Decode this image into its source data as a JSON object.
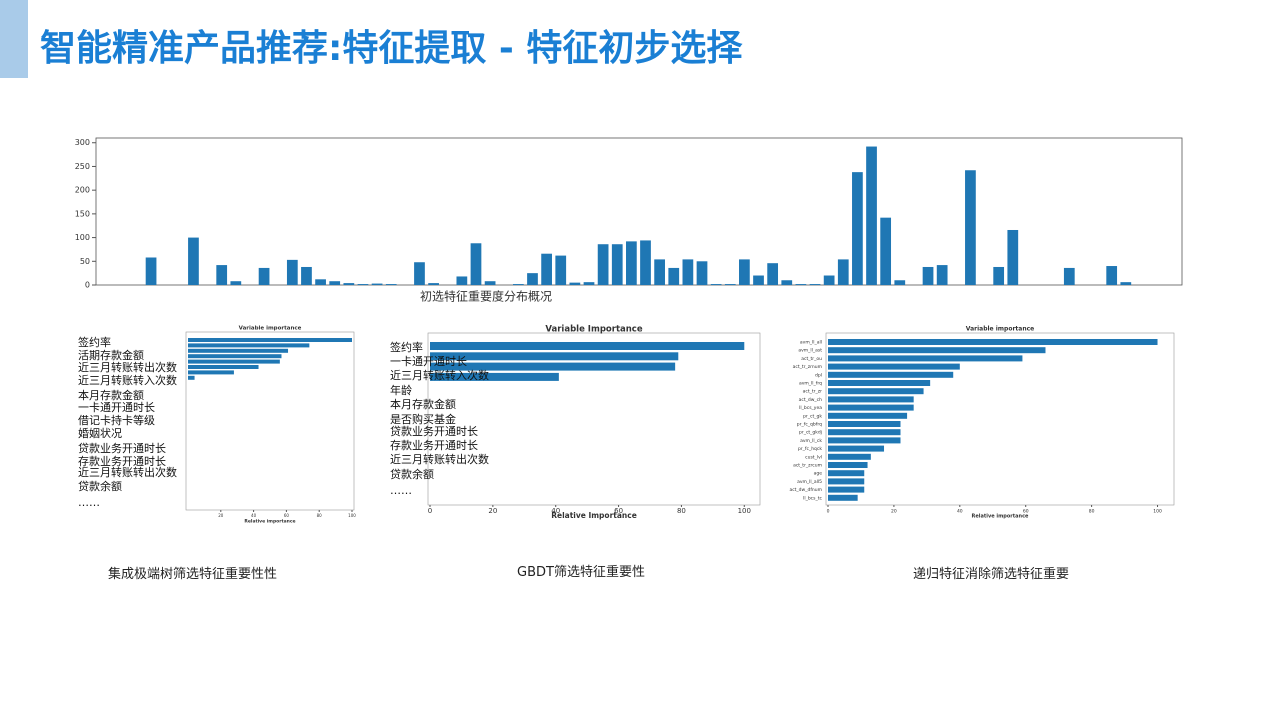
{
  "header": {
    "title": "智能精准产品推荐:特征提取 - 特征初步选择"
  },
  "chart_data": [
    {
      "type": "bar",
      "title": "初选特征重要度分布概况",
      "color": "#1f77b4",
      "categories": [
        null,
        null,
        null,
        null,
        null,
        null,
        null,
        null,
        null,
        null,
        null,
        null,
        null,
        null,
        null,
        null,
        null,
        null,
        null,
        null,
        null,
        null,
        null,
        null,
        null,
        null,
        null,
        null,
        null,
        null,
        null,
        null,
        null,
        null,
        null,
        null,
        null,
        null,
        null,
        null,
        null,
        null,
        null,
        null,
        null,
        null,
        null,
        null,
        null,
        null,
        null,
        null,
        null,
        null,
        null,
        null,
        null,
        null,
        null,
        null,
        null,
        null,
        null,
        null,
        null,
        null,
        null,
        null,
        null,
        null,
        null
      ],
      "values": [
        58,
        0,
        0,
        100,
        0,
        42,
        8,
        0,
        36,
        0,
        53,
        38,
        12,
        8,
        4,
        2,
        3,
        2,
        0,
        48,
        4,
        0,
        18,
        88,
        8,
        0,
        2,
        25,
        66,
        62,
        5,
        6,
        86,
        86,
        92,
        94,
        54,
        36,
        54,
        50,
        2,
        2,
        54,
        20,
        46,
        10,
        2,
        2,
        20,
        54,
        238,
        292,
        142,
        10,
        0,
        38,
        42,
        0,
        242,
        0,
        38,
        116,
        0,
        0,
        0,
        36,
        0,
        0,
        40,
        6,
        0
      ],
      "ylim": [
        0,
        310
      ],
      "yticks": [
        0,
        50,
        100,
        150,
        200,
        250,
        300
      ]
    },
    {
      "type": "barh",
      "title": "Variable importance",
      "xlabel": "Relative importance",
      "color": "#1f77b4",
      "values": [
        100,
        74,
        61,
        57,
        56,
        43,
        28,
        4
      ],
      "xlim": [
        0,
        100
      ],
      "xticks": [
        20,
        40,
        60,
        80,
        100
      ],
      "annotations": [
        "签约率",
        "活期存款金额",
        "近三月转账转出次数",
        "近三月转账转入次数",
        "本月存款金额",
        "一卡通开通时长",
        "借记卡持卡等级",
        "婚姻状况",
        "贷款业务开通时长",
        "存款业务开通时长",
        "近三月转账转出次数",
        "贷款余额",
        "……"
      ]
    },
    {
      "type": "barh",
      "title": "Variable Importance",
      "xlabel": "Relative Importance",
      "color": "#1f77b4",
      "values": [
        100,
        79,
        78,
        41
      ],
      "xlim": [
        0,
        105
      ],
      "xticks": [
        0,
        20,
        40,
        60,
        80,
        100
      ],
      "annotations": [
        "签约率",
        "一卡通开通时长",
        "近三月转账转入次数",
        "年龄",
        "本月存款金额",
        "是否购买基金",
        "贷款业务开通时长",
        "存款业务开通时长",
        "近三月转账转出次数",
        "贷款余额",
        "……"
      ]
    },
    {
      "type": "barh",
      "title": "Variable importance",
      "xlabel": "Relative importance",
      "color": "#1f77b4",
      "categories": [
        "avm_ll_all",
        "avm_ll_ast",
        "act_tr_ou",
        "act_tr_zrnum",
        "dpl",
        "avm_ll_frq",
        "act_tr_zr",
        "act_dw_ch",
        "ll_bcs_yea",
        "pr_ct_gk",
        "pr_fc_qbfrq",
        "pr_ct_gkdj",
        "avm_ll_ck",
        "pr_fc_hqck",
        "cust_lvl",
        "act_tr_zrcum",
        "age",
        "avm_ll_all5",
        "act_dw_dfnum",
        "ll_bcs_tc"
      ],
      "values": [
        100,
        66,
        59,
        40,
        38,
        31,
        29,
        26,
        26,
        24,
        22,
        22,
        22,
        17,
        13,
        12,
        11,
        11,
        11,
        9
      ],
      "xlim": [
        0,
        105
      ],
      "xticks": [
        0,
        20,
        40,
        60,
        80,
        100
      ]
    }
  ],
  "captions": [
    "集成极端树筛选特征重要性性",
    "GBDT筛选特征重要性",
    "递归特征消除筛选特征重要"
  ]
}
